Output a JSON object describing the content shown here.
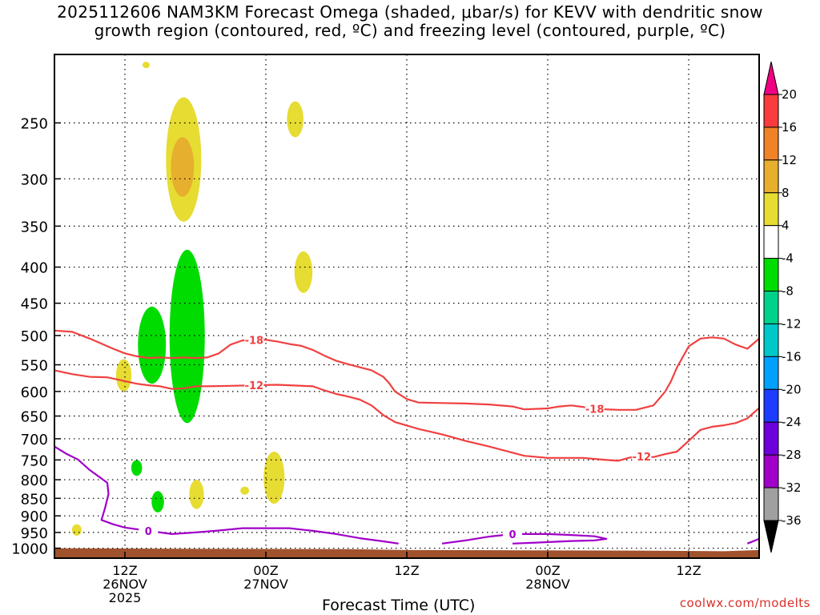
{
  "title": {
    "line1": "2025112606 NAM3KM Forecast Omega (shaded, μbar/s) for KEVV with dendritic snow",
    "line2": "growth region (contoured, red, ºC) and freezing level (contoured, purple, ºC)"
  },
  "credit": "coolwx.com/modelts",
  "chart_data": {
    "type": "time-height cross section",
    "station": "KEVV",
    "model": "NAM3KM",
    "init": "2025112606",
    "xlabel": "Forecast Time (UTC)",
    "x_ticks": [
      {
        "hours": 6,
        "label": [
          "12Z",
          "26NOV",
          "2025"
        ]
      },
      {
        "hours": 18,
        "label": [
          "00Z",
          "27NOV"
        ]
      },
      {
        "hours": 30,
        "label": [
          "12Z"
        ]
      },
      {
        "hours": 42,
        "label": [
          "00Z",
          "28NOV"
        ]
      },
      {
        "hours": 54,
        "label": [
          "12Z"
        ]
      }
    ],
    "xlim_hours": [
      0,
      60
    ],
    "y_axis": {
      "scale": "log",
      "units": "hPa",
      "ylim": [
        1000,
        200
      ]
    },
    "y_ticks": [
      250,
      300,
      350,
      400,
      450,
      500,
      550,
      600,
      650,
      700,
      750,
      800,
      850,
      900,
      950,
      1000
    ],
    "grid": "dotted horizontal at each pressure tick",
    "colorbar": {
      "levels": [
        -36,
        -32,
        -28,
        -24,
        -20,
        -16,
        -12,
        -8,
        -4,
        4,
        8,
        12,
        16,
        20
      ],
      "labels": [
        "20",
        "16",
        "12",
        "8",
        "4",
        "-4",
        "-8",
        "-12",
        "-16",
        "-20",
        "-24",
        "-28",
        "-32",
        "-36"
      ],
      "colors": [
        "#a0a0a0",
        "#a000c8",
        "#6e00dc",
        "#1e3cff",
        "#00a0ff",
        "#00c8c8",
        "#00d28c",
        "#00dc00",
        "#ffffff",
        "#e6dc32",
        "#e6af2d",
        "#f08228",
        "#fa3c3c",
        "#f00082"
      ],
      "min_arrow_color": "#000000",
      "max_arrow_color": "#f00082"
    },
    "contours": [
      {
        "label": "-18",
        "color": "#f04040",
        "points": [
          [
            0.0,
            492
          ],
          [
            1.5,
            494
          ],
          [
            3,
            505
          ],
          [
            5,
            522
          ],
          [
            6,
            530
          ],
          [
            7,
            535
          ],
          [
            8,
            538
          ],
          [
            9,
            537
          ],
          [
            10,
            538
          ],
          [
            11,
            537
          ],
          [
            12,
            538
          ],
          [
            13,
            537
          ],
          [
            14,
            530
          ],
          [
            15,
            515
          ],
          [
            16,
            508
          ],
          [
            17,
            507
          ],
          [
            18,
            507
          ],
          [
            19,
            510
          ],
          [
            20,
            514
          ],
          [
            21,
            517
          ],
          [
            22,
            524
          ],
          [
            23,
            534
          ],
          [
            24,
            543
          ],
          [
            25,
            549
          ],
          [
            27,
            560
          ],
          [
            28,
            572
          ],
          [
            28.5,
            584
          ],
          [
            29,
            600
          ],
          [
            30,
            615
          ],
          [
            31,
            622
          ],
          [
            33,
            623
          ],
          [
            35,
            624
          ],
          [
            37,
            626
          ],
          [
            39,
            630
          ],
          [
            40,
            636
          ],
          [
            41,
            635
          ],
          [
            42,
            634
          ],
          [
            43,
            630
          ],
          [
            44,
            628
          ],
          [
            45,
            631
          ],
          [
            46,
            635
          ],
          [
            48,
            637
          ],
          [
            49.5,
            637
          ],
          [
            51,
            628
          ],
          [
            52,
            600
          ],
          [
            52.5,
            580
          ],
          [
            53,
            555
          ],
          [
            54,
            518
          ],
          [
            55,
            505
          ],
          [
            56,
            503
          ],
          [
            57,
            505
          ],
          [
            58,
            515
          ],
          [
            59,
            522
          ],
          [
            60,
            505
          ]
        ],
        "label_at_hours": [
          17,
          47
        ]
      },
      {
        "label": "-12",
        "color": "#f04040",
        "points": [
          [
            0.0,
            560
          ],
          [
            1.5,
            567
          ],
          [
            3,
            572
          ],
          [
            4.5,
            573
          ],
          [
            6,
            580
          ],
          [
            7,
            585
          ],
          [
            8,
            588
          ],
          [
            9,
            590
          ],
          [
            10,
            595
          ],
          [
            11,
            594
          ],
          [
            12,
            590
          ],
          [
            13,
            590
          ],
          [
            15,
            589
          ],
          [
            17,
            588
          ],
          [
            19,
            587
          ],
          [
            20,
            588
          ],
          [
            22,
            590
          ],
          [
            23,
            598
          ],
          [
            24,
            605
          ],
          [
            25,
            610
          ],
          [
            26,
            616
          ],
          [
            27,
            628
          ],
          [
            28,
            648
          ],
          [
            29,
            663
          ],
          [
            31,
            678
          ],
          [
            33,
            690
          ],
          [
            35,
            705
          ],
          [
            37,
            718
          ],
          [
            40,
            740
          ],
          [
            42,
            745
          ],
          [
            45,
            745
          ],
          [
            47,
            750
          ],
          [
            48,
            752
          ],
          [
            49,
            744
          ],
          [
            50,
            742
          ],
          [
            51,
            743
          ],
          [
            52,
            736
          ],
          [
            53,
            730
          ],
          [
            54,
            705
          ],
          [
            55,
            680
          ],
          [
            56,
            673
          ],
          [
            57,
            670
          ],
          [
            58,
            665
          ],
          [
            59,
            655
          ],
          [
            60,
            633
          ]
        ],
        "label_at_hours": [
          18,
          50
        ]
      },
      {
        "label": "0",
        "color": "#a000c8",
        "points": [
          [
            0.0,
            718
          ],
          [
            1,
            735
          ],
          [
            2,
            749
          ],
          [
            3,
            775
          ],
          [
            4.5,
            808
          ],
          [
            4.6,
            838
          ],
          [
            4.3,
            878
          ],
          [
            4.0,
            912
          ],
          [
            5,
            925
          ],
          [
            6,
            935
          ],
          [
            8,
            945
          ],
          [
            10,
            955
          ],
          [
            12,
            950
          ],
          [
            14,
            944
          ],
          [
            16,
            937
          ],
          [
            18,
            937
          ],
          [
            20,
            937
          ],
          [
            22,
            945
          ],
          [
            24,
            955
          ],
          [
            26,
            968
          ],
          [
            28,
            978
          ],
          [
            29.3,
            985
          ]
        ],
        "label_at_hours": [
          9
        ]
      },
      {
        "label": "0",
        "color": "#a000c8",
        "points": [
          [
            33,
            985
          ],
          [
            35,
            975
          ],
          [
            37,
            963
          ],
          [
            39,
            955
          ],
          [
            42,
            955
          ],
          [
            44,
            958
          ],
          [
            46,
            962
          ],
          [
            47,
            970
          ],
          [
            46,
            975
          ],
          [
            44,
            977
          ],
          [
            41,
            982
          ],
          [
            39,
            985
          ]
        ],
        "label_at_hours": [
          39
        ]
      },
      {
        "label": "",
        "color": "#a000c8",
        "points": [
          [
            59,
            985
          ],
          [
            60,
            970
          ]
        ],
        "label_at_hours": []
      }
    ],
    "shaded_regions": [
      {
        "omega_bin": "4 to 8",
        "hours": 7.8,
        "p_top": 206,
        "p_bottom": 208
      },
      {
        "omega_bin": "4 to 8",
        "hours": 11.0,
        "p_top": 230,
        "p_bottom": 345
      },
      {
        "omega_bin": "8 to 12",
        "hours": 10.9,
        "p_top": 262,
        "p_bottom": 318
      },
      {
        "omega_bin": "4 to 8",
        "hours": 20.5,
        "p_top": 233,
        "p_bottom": 262
      },
      {
        "omega_bin": "4 to 8",
        "hours": 21.2,
        "p_top": 380,
        "p_bottom": 435
      },
      {
        "omega_bin": "4 to 8",
        "hours": 5.9,
        "p_top": 540,
        "p_bottom": 600
      },
      {
        "omega_bin": "4 to 8",
        "hours": 1.9,
        "p_top": 925,
        "p_bottom": 960
      },
      {
        "omega_bin": "4 to 8",
        "hours": 12.1,
        "p_top": 800,
        "p_bottom": 880
      },
      {
        "omega_bin": "4 to 8",
        "hours": 16.2,
        "p_top": 818,
        "p_bottom": 840
      },
      {
        "omega_bin": "4 to 8",
        "hours": 18.7,
        "p_top": 730,
        "p_bottom": 865
      },
      {
        "omega_bin": "-4 to -8",
        "hours": 8.3,
        "p_top": 455,
        "p_bottom": 585
      },
      {
        "omega_bin": "-4 to -8",
        "hours": 11.3,
        "p_top": 378,
        "p_bottom": 665
      },
      {
        "omega_bin": "-4 to -8",
        "hours": 7.0,
        "p_top": 750,
        "p_bottom": 790
      },
      {
        "omega_bin": "-4 to -8",
        "hours": 8.8,
        "p_top": 830,
        "p_bottom": 890
      }
    ],
    "terrain_color": "#a0522d"
  }
}
